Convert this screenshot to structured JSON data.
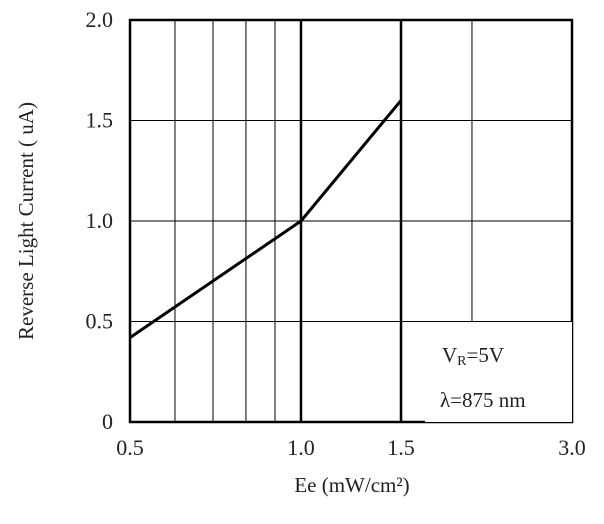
{
  "chart_data": {
    "type": "line",
    "x_scale": "log",
    "grid": true,
    "xlabel": "Ee (mW/cm²)",
    "ylabel": "Reverse Light Current ( uA)",
    "xlim": [
      0.5,
      3.0
    ],
    "ylim": [
      0,
      2.0
    ],
    "x_ticks": [
      0.5,
      1.0,
      1.5,
      3.0
    ],
    "x_tick_labels": [
      "0.5",
      "1.0",
      "1.5",
      "3.0"
    ],
    "y_ticks": [
      0,
      0.5,
      1.0,
      1.5,
      2.0
    ],
    "y_tick_labels": [
      "0",
      "0.5",
      "1.0",
      "1.5",
      "2.0"
    ],
    "series": [
      {
        "x": [
          0.5,
          1.0,
          1.5
        ],
        "y": [
          0.42,
          1.0,
          1.6
        ]
      }
    ],
    "annotations": {
      "condition_prefix": "V",
      "condition_subscript": "R",
      "condition_suffix": "=5V",
      "wavelength": "λ=875 nm"
    }
  }
}
